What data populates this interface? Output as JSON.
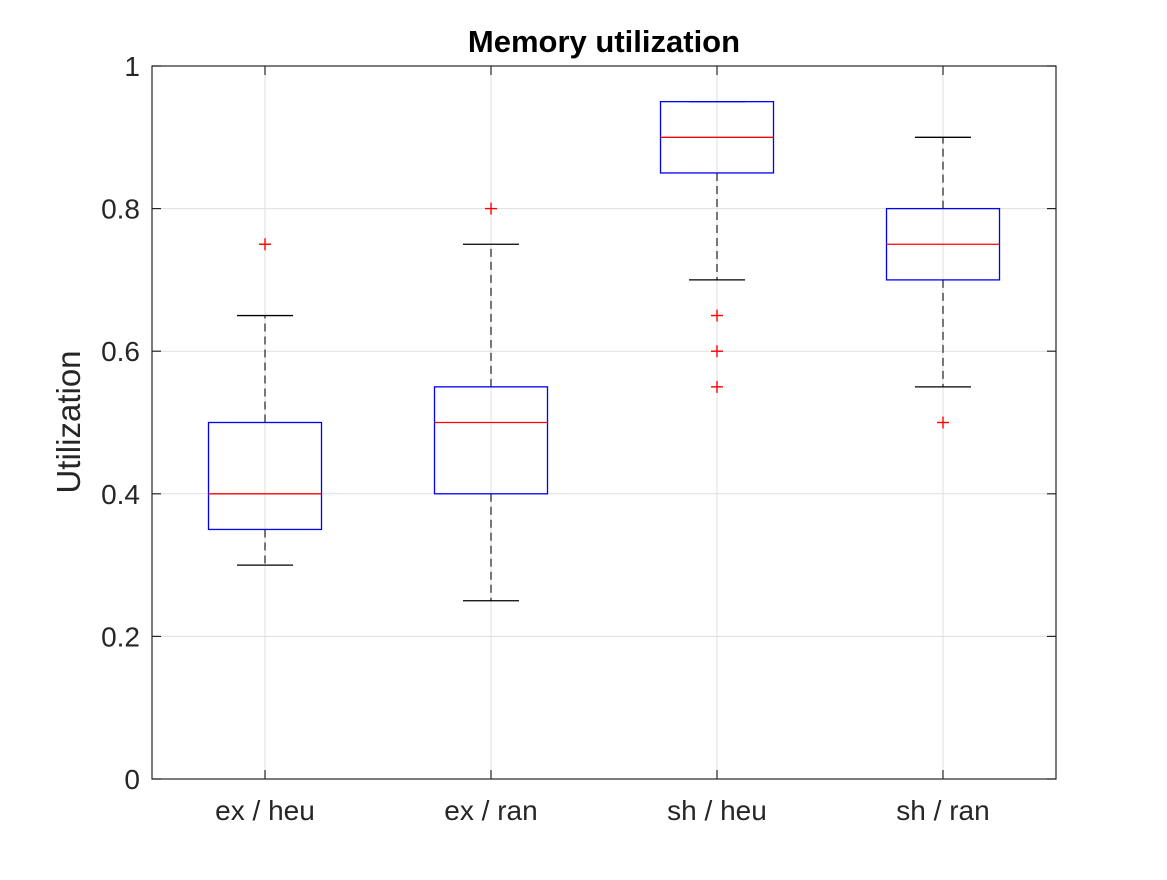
{
  "chart_data": {
    "type": "boxplot",
    "title": "Memory utilization",
    "xlabel": "",
    "ylabel": "Utilization",
    "ylim": [
      0,
      1
    ],
    "yticks": [
      0,
      0.2,
      0.4,
      0.6,
      0.8,
      1
    ],
    "ytick_labels": [
      "0",
      "0.2",
      "0.4",
      "0.6",
      "0.8",
      "1"
    ],
    "grid": true,
    "categories": [
      "ex / heu",
      "ex / ran",
      "sh / heu",
      "sh / ran"
    ],
    "boxes": [
      {
        "category": "ex / heu",
        "whisker_low": 0.3,
        "q1": 0.35,
        "median": 0.4,
        "q3": 0.5,
        "whisker_high": 0.65,
        "outliers": [
          0.75
        ]
      },
      {
        "category": "ex / ran",
        "whisker_low": 0.25,
        "q1": 0.4,
        "median": 0.5,
        "q3": 0.55,
        "whisker_high": 0.75,
        "outliers": [
          0.8
        ]
      },
      {
        "category": "sh / heu",
        "whisker_low": 0.7,
        "q1": 0.85,
        "median": 0.9,
        "q3": 0.95,
        "whisker_high": 0.95,
        "outliers": [
          0.65,
          0.6,
          0.55
        ]
      },
      {
        "category": "sh / ran",
        "whisker_low": 0.55,
        "q1": 0.7,
        "median": 0.75,
        "q3": 0.8,
        "whisker_high": 0.9,
        "outliers": [
          0.5
        ]
      }
    ],
    "colors": {
      "box": "#0000ff",
      "median": "#ff0000",
      "whisker": "#000000",
      "outlier": "#ff0000",
      "grid": "#dfdfdf",
      "axis": "#262626"
    }
  }
}
